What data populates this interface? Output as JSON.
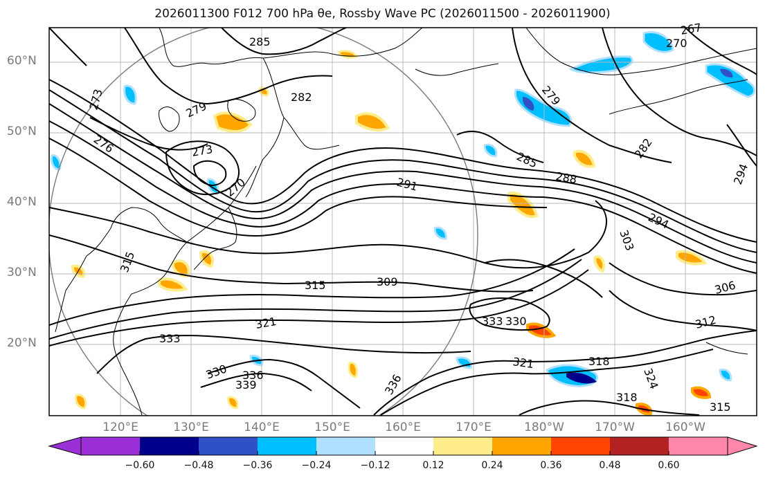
{
  "title": "2026011300 F012 700 hPa θe, Rossby Wave PC (2026011500 - 2026011900)",
  "latitude_labels": [
    "60°N",
    "50°N",
    "40°N",
    "30°N",
    "20°N"
  ],
  "longitude_labels": [
    "120°E",
    "130°E",
    "140°E",
    "150°E",
    "160°E",
    "170°E",
    "180°W",
    "170°W",
    "160°W"
  ],
  "contour_labels": [
    "285",
    "282",
    "279",
    "273",
    "270",
    "276",
    "273",
    "285",
    "291",
    "288",
    "294",
    "303",
    "306",
    "312",
    "309",
    "315",
    "333",
    "330",
    "321",
    "318",
    "324",
    "339",
    "336",
    "315",
    "267",
    "270",
    "279",
    "282",
    "294",
    "333",
    "330",
    "321",
    "318",
    "315",
    "336"
  ],
  "colorbar": {
    "ticks": [
      "−0.60",
      "−0.48",
      "−0.36",
      "−0.24",
      "−0.12",
      "0.12",
      "0.24",
      "0.36",
      "0.48",
      "0.60"
    ],
    "colors": [
      "#9b30d9",
      "#00008b",
      "#3050c8",
      "#00bfff",
      "#b0e0ff",
      "#ffffff",
      "#ffec8b",
      "#ffa500",
      "#ff4500",
      "#b22222",
      "#ff88aa"
    ]
  }
}
